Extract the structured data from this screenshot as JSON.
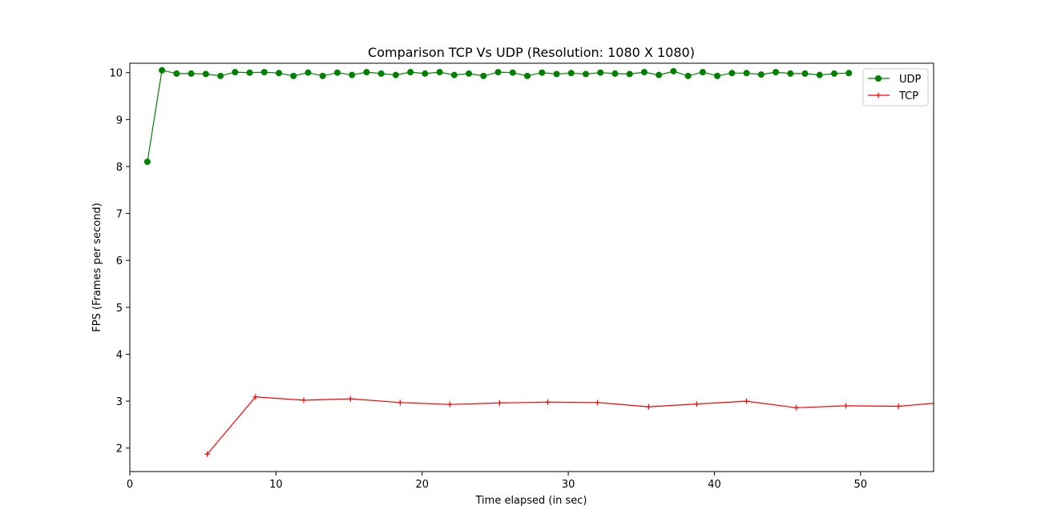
{
  "chart_data": {
    "type": "line",
    "title": "Comparison TCP Vs UDP (Resolution: 1080 X 1080)",
    "xlabel": "Time elapsed (in sec)",
    "ylabel": "FPS (Frames per second)",
    "xlim": [
      0,
      55
    ],
    "ylim": [
      1.5,
      10.2
    ],
    "xticks": [
      0,
      10,
      20,
      30,
      40,
      50
    ],
    "yticks": [
      2,
      3,
      4,
      5,
      6,
      7,
      8,
      9,
      10
    ],
    "grid": false,
    "legend_position": "top-right",
    "series": [
      {
        "name": "UDP",
        "color": "#008000",
        "marker": "circle",
        "x": [
          1.2,
          2.2,
          3.2,
          4.2,
          5.2,
          6.2,
          7.2,
          8.2,
          9.2,
          10.2,
          11.2,
          12.2,
          13.2,
          14.2,
          15.2,
          16.2,
          17.2,
          18.2,
          19.2,
          20.2,
          21.2,
          22.2,
          23.2,
          24.2,
          25.2,
          26.2,
          27.2,
          28.2,
          29.2,
          30.2,
          31.2,
          32.2,
          33.2,
          34.2,
          35.2,
          36.2,
          37.2,
          38.2,
          39.2,
          40.2,
          41.2,
          42.2,
          43.2,
          44.2,
          45.2,
          46.2,
          47.2,
          48.2,
          49.2
        ],
        "y": [
          8.1,
          10.05,
          9.98,
          9.98,
          9.97,
          9.93,
          10.01,
          10.0,
          10.01,
          9.99,
          9.93,
          10.0,
          9.93,
          10.0,
          9.95,
          10.01,
          9.98,
          9.95,
          10.01,
          9.98,
          10.01,
          9.95,
          9.98,
          9.93,
          10.01,
          10.0,
          9.93,
          10.0,
          9.97,
          9.99,
          9.97,
          10.0,
          9.98,
          9.97,
          10.01,
          9.95,
          10.03,
          9.93,
          10.01,
          9.93,
          9.99,
          9.99,
          9.96,
          10.01,
          9.98,
          9.98,
          9.95,
          9.98,
          9.99
        ]
      },
      {
        "name": "TCP",
        "color": "#ff0000",
        "marker": "plus",
        "x": [
          5.3,
          8.6,
          11.9,
          15.1,
          18.5,
          21.9,
          25.3,
          28.6,
          32.0,
          35.5,
          38.8,
          42.2,
          45.6,
          49.0,
          52.6,
          56.0
        ],
        "y": [
          1.87,
          3.09,
          3.02,
          3.05,
          2.97,
          2.93,
          2.96,
          2.98,
          2.97,
          2.88,
          2.94,
          3.0,
          2.86,
          2.9,
          2.89,
          2.98
        ]
      }
    ]
  }
}
